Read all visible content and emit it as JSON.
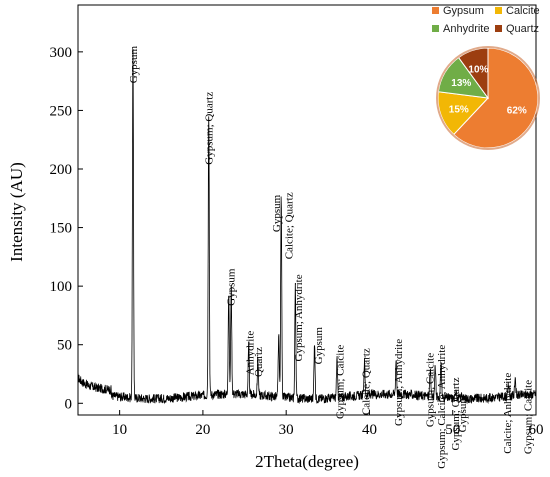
{
  "chart_data": [
    {
      "type": "line",
      "title": "",
      "xlabel": "2Theta(degree)",
      "ylabel": "Intensity (AU)",
      "xlim": [
        5,
        60
      ],
      "ylim": [
        -10,
        340
      ],
      "x_ticks": [
        10,
        20,
        30,
        40,
        50,
        60
      ],
      "y_ticks": [
        0,
        50,
        100,
        150,
        200,
        250,
        300
      ],
      "grid": false,
      "background_level": 6,
      "peaks": [
        {
          "x": 11.6,
          "y": 300
        },
        {
          "x": 20.7,
          "y": 251
        },
        {
          "x": 23.1,
          "y": 95
        },
        {
          "x": 23.4,
          "y": 101
        },
        {
          "x": 25.5,
          "y": 50
        },
        {
          "x": 26.6,
          "y": 39
        },
        {
          "x": 29.1,
          "y": 58
        },
        {
          "x": 29.4,
          "y": 178
        },
        {
          "x": 31.1,
          "y": 100
        },
        {
          "x": 33.4,
          "y": 53
        },
        {
          "x": 36.1,
          "y": 37
        },
        {
          "x": 39.4,
          "y": 36
        },
        {
          "x": 43.2,
          "y": 38
        },
        {
          "x": 47.3,
          "y": 30
        },
        {
          "x": 47.9,
          "y": 32
        },
        {
          "x": 48.6,
          "y": 37
        },
        {
          "x": 50.4,
          "y": 13
        },
        {
          "x": 51.1,
          "y": 9
        },
        {
          "x": 56.7,
          "y": 17
        },
        {
          "x": 57.5,
          "y": 23
        }
      ],
      "annotations": [
        {
          "text": "Gypsum",
          "x": 11.6,
          "y": 305
        },
        {
          "text": "Gypsum; Quartz",
          "x": 20.7,
          "y": 266
        },
        {
          "text": "Gypsum",
          "x": 23.3,
          "y": 115
        },
        {
          "text": "Anhydrite",
          "x": 25.6,
          "y": 62
        },
        {
          "text": "Quartz",
          "x": 26.6,
          "y": 48
        },
        {
          "text": "Gypsum",
          "x": 28.8,
          "y": 178
        },
        {
          "text": "Calcite; Quartz",
          "x": 30.3,
          "y": 180
        },
        {
          "text": "Gypsum; Anhydrite",
          "x": 31.4,
          "y": 110
        },
        {
          "text": "Gypsum",
          "x": 33.8,
          "y": 65
        },
        {
          "text": "Gypsum; Calcite",
          "x": 36.4,
          "y": 50
        },
        {
          "text": "Calcite; Quartz",
          "x": 39.5,
          "y": 47
        },
        {
          "text": "Gypsum; Anhydrite",
          "x": 43.4,
          "y": 55
        },
        {
          "text": "Gypsum; Calcite",
          "x": 47.2,
          "y": 43
        },
        {
          "text": "Gypsum; Calcite; Anhydrite",
          "x": 48.6,
          "y": 50
        },
        {
          "text": "Gypsum; Quartz",
          "x": 50.3,
          "y": 22
        },
        {
          "text": "Gypsum",
          "x": 51.1,
          "y": 7
        },
        {
          "text": "Calcite; Anhydrite",
          "x": 56.5,
          "y": 26
        },
        {
          "text": "Gypsum; Calcite",
          "x": 59.0,
          "y": 20
        }
      ]
    },
    {
      "type": "pie",
      "legend_position": "top",
      "slices": [
        {
          "name": "Gypsum",
          "value": 62,
          "label": "62%",
          "color": "#ED7D31"
        },
        {
          "name": "Calcite",
          "value": 15,
          "label": "15%",
          "color": "#F2B705"
        },
        {
          "name": "Anhydrite",
          "value": 13,
          "label": "13%",
          "color": "#70AD47"
        },
        {
          "name": "Quartz",
          "value": 10,
          "label": "10%",
          "color": "#9C3E10"
        }
      ]
    }
  ]
}
